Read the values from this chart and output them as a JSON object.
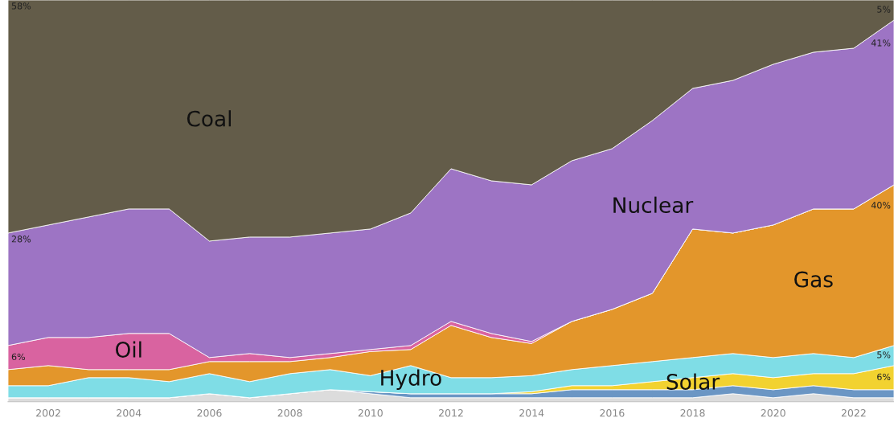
{
  "chart_data": {
    "type": "area",
    "stacked": true,
    "x": [
      2001,
      2002,
      2003,
      2004,
      2005,
      2006,
      2007,
      2008,
      2009,
      2010,
      2011,
      2012,
      2013,
      2014,
      2015,
      2016,
      2017,
      2018,
      2019,
      2020,
      2021,
      2022,
      2023
    ],
    "series": [
      {
        "color": "#dcdcdc",
        "values": [
          1,
          1,
          1,
          1,
          1,
          2,
          1,
          2,
          3,
          2,
          1,
          1,
          1,
          1,
          1,
          1,
          1,
          1,
          2,
          1,
          2,
          1,
          1
        ]
      },
      {
        "color": "#6b96c4",
        "values": [
          0,
          0,
          0,
          0,
          0,
          0,
          0,
          0,
          0,
          0.5,
          1,
          1,
          1,
          1,
          2,
          2,
          2,
          2,
          2,
          2,
          2,
          2,
          2
        ]
      },
      {
        "name": "Solar",
        "color": "#f2d230",
        "values": [
          0,
          0,
          0,
          0,
          0,
          0,
          0,
          0,
          0,
          0,
          0,
          0,
          0,
          0.5,
          1,
          1,
          2,
          3,
          3,
          3,
          3,
          4,
          6
        ],
        "value_labels": [
          null,
          null,
          null,
          null,
          null,
          null,
          null,
          null,
          null,
          null,
          null,
          null,
          null,
          null,
          null,
          null,
          null,
          null,
          null,
          null,
          null,
          null,
          "6%"
        ]
      },
      {
        "name": "Hydro",
        "color": "#7fdde6",
        "values": [
          3,
          3,
          5,
          5,
          4,
          5,
          4,
          5,
          5,
          4,
          7,
          4,
          4,
          4,
          4,
          5,
          5,
          5,
          5,
          5,
          5,
          4,
          5
        ],
        "value_labels": [
          null,
          null,
          null,
          null,
          null,
          null,
          null,
          null,
          null,
          null,
          null,
          null,
          null,
          null,
          null,
          null,
          null,
          null,
          null,
          null,
          null,
          null,
          "5%"
        ]
      },
      {
        "name": "Gas",
        "color": "#e3962b",
        "values": [
          4,
          5,
          2,
          2,
          3,
          3,
          5,
          3,
          3,
          6,
          4,
          13,
          10,
          8,
          12,
          14,
          17,
          32,
          30,
          33,
          36,
          37,
          40
        ],
        "value_labels": [
          null,
          null,
          null,
          null,
          null,
          null,
          null,
          null,
          null,
          null,
          null,
          null,
          null,
          null,
          null,
          null,
          null,
          null,
          null,
          null,
          null,
          null,
          "40%"
        ]
      },
      {
        "name": "Oil",
        "color": "#d963a0",
        "values": [
          6,
          7,
          8,
          9,
          9,
          1,
          2,
          1,
          1,
          0.5,
          1,
          1,
          1,
          0.5,
          0,
          0,
          0,
          0,
          0,
          0,
          0,
          0,
          0
        ],
        "value_labels": [
          "6%",
          null,
          null,
          null,
          null,
          null,
          null,
          null,
          null,
          null,
          null,
          null,
          null,
          null,
          null,
          null,
          null,
          null,
          null,
          null,
          null,
          null,
          null
        ]
      },
      {
        "name": "Nuclear",
        "color": "#9d74c4",
        "values": [
          28,
          28,
          30,
          31,
          31,
          29,
          29,
          30,
          30,
          30,
          33,
          38,
          38,
          39,
          40,
          40,
          43,
          35,
          38,
          40,
          39,
          40,
          41
        ],
        "value_labels": [
          "28%",
          null,
          null,
          null,
          null,
          null,
          null,
          null,
          null,
          null,
          null,
          null,
          null,
          null,
          null,
          null,
          null,
          null,
          null,
          null,
          null,
          null,
          "41%"
        ]
      },
      {
        "name": "Coal",
        "color": "#635c49",
        "values": [
          58,
          56,
          54,
          52,
          52,
          60,
          59,
          59,
          58,
          57,
          53,
          42,
          45,
          46,
          40,
          37,
          30,
          22,
          20,
          16,
          13,
          12,
          5
        ],
        "value_labels": [
          "58%",
          null,
          null,
          null,
          null,
          null,
          null,
          null,
          null,
          null,
          null,
          null,
          null,
          null,
          null,
          null,
          null,
          null,
          null,
          null,
          null,
          null,
          "5%"
        ]
      }
    ],
    "xlim": [
      2001,
      2023
    ],
    "xticks": [
      2002,
      2004,
      2006,
      2008,
      2010,
      2012,
      2014,
      2016,
      2018,
      2020,
      2022
    ]
  }
}
